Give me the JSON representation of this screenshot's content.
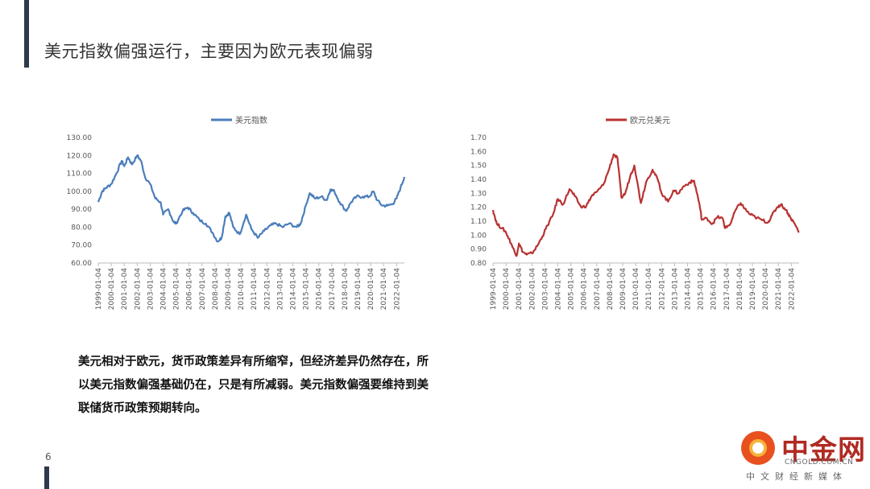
{
  "title": "美元指数偏强运行，主要因为欧元表现偏弱",
  "body_text": "美元相对于欧元，货币政策差异有所缩窄，但经济差异仍然存在，所以美元指数偏强基础仍在，只是有所减弱。美元指数偏强要维持到美联储货币政策预期转向。",
  "page_number": "6",
  "logo": {
    "name": "中金网",
    "domain": "CNGOLD.COM.CN",
    "tagline": "中文财经新媒体"
  },
  "chart_data": [
    {
      "type": "line",
      "legend": "美元指数",
      "color": "#4a7ebb",
      "y_ticks": [
        "60.00",
        "70.00",
        "80.00",
        "90.00",
        "100.00",
        "110.00",
        "120.00",
        "130.00"
      ],
      "ylim": [
        60,
        130
      ],
      "x_ticks": [
        "1999-01-04",
        "2000-01-04",
        "2001-01-04",
        "2002-01-04",
        "2003-01-04",
        "2004-01-04",
        "2005-01-04",
        "2006-01-04",
        "2007-01-04",
        "2008-01-04",
        "2009-01-04",
        "2010-01-04",
        "2011-01-04",
        "2012-01-04",
        "2013-01-04",
        "2014-01-04",
        "2015-01-04",
        "2016-01-04",
        "2017-01-04",
        "2018-01-04",
        "2019-01-04",
        "2020-01-04",
        "2021-01-04",
        "2022-01-04"
      ],
      "xlim": [
        1999.0,
        2022.6
      ],
      "points": [
        [
          1999.0,
          94
        ],
        [
          1999.3,
          100
        ],
        [
          1999.6,
          102
        ],
        [
          2000.0,
          104
        ],
        [
          2000.4,
          110
        ],
        [
          2000.8,
          117
        ],
        [
          2001.0,
          114
        ],
        [
          2001.3,
          119
        ],
        [
          2001.6,
          115
        ],
        [
          2002.0,
          120
        ],
        [
          2002.3,
          117
        ],
        [
          2002.6,
          108
        ],
        [
          2003.0,
          104
        ],
        [
          2003.4,
          96
        ],
        [
          2003.8,
          94
        ],
        [
          2004.0,
          87
        ],
        [
          2004.4,
          90
        ],
        [
          2004.8,
          83
        ],
        [
          2005.0,
          82
        ],
        [
          2005.5,
          89
        ],
        [
          2005.9,
          91
        ],
        [
          2006.3,
          88
        ],
        [
          2006.8,
          84
        ],
        [
          2007.3,
          82
        ],
        [
          2007.8,
          77
        ],
        [
          2008.2,
          72
        ],
        [
          2008.5,
          74
        ],
        [
          2008.8,
          86
        ],
        [
          2009.1,
          88
        ],
        [
          2009.4,
          80
        ],
        [
          2009.9,
          76
        ],
        [
          2010.4,
          87
        ],
        [
          2010.8,
          79
        ],
        [
          2011.3,
          74
        ],
        [
          2011.8,
          78
        ],
        [
          2012.3,
          81
        ],
        [
          2012.7,
          82
        ],
        [
          2013.2,
          80
        ],
        [
          2013.7,
          82
        ],
        [
          2014.3,
          80
        ],
        [
          2014.6,
          82
        ],
        [
          2015.0,
          92
        ],
        [
          2015.3,
          99
        ],
        [
          2015.7,
          96
        ],
        [
          2016.2,
          97
        ],
        [
          2016.6,
          95
        ],
        [
          2016.9,
          101
        ],
        [
          2017.2,
          100
        ],
        [
          2017.6,
          94
        ],
        [
          2018.1,
          89
        ],
        [
          2018.5,
          94
        ],
        [
          2018.9,
          97
        ],
        [
          2019.4,
          97
        ],
        [
          2019.9,
          97
        ],
        [
          2020.2,
          100
        ],
        [
          2020.5,
          95
        ],
        [
          2020.9,
          92
        ],
        [
          2021.3,
          92
        ],
        [
          2021.7,
          93
        ],
        [
          2022.0,
          96
        ],
        [
          2022.3,
          102
        ],
        [
          2022.6,
          108
        ]
      ]
    },
    {
      "type": "line",
      "legend": "欧元兑美元",
      "color": "#b83232",
      "y_ticks": [
        "0.80",
        "0.90",
        "1.00",
        "1.10",
        "1.20",
        "1.30",
        "1.40",
        "1.50",
        "1.60",
        "1.70"
      ],
      "ylim": [
        0.8,
        1.7
      ],
      "x_ticks": [
        "1999-01-04",
        "2000-01-04",
        "2001-01-04",
        "2002-01-04",
        "2003-01-04",
        "2004-01-04",
        "2005-01-04",
        "2006-01-04",
        "2007-01-04",
        "2008-01-04",
        "2009-01-04",
        "2010-01-04",
        "2011-01-04",
        "2012-01-04",
        "2013-01-04",
        "2014-01-04",
        "2015-01-04",
        "2016-01-04",
        "2017-01-04",
        "2018-01-04",
        "2019-01-04",
        "2020-01-04",
        "2021-01-04",
        "2022-01-04"
      ],
      "xlim": [
        1999.0,
        2022.6
      ],
      "points": [
        [
          1999.0,
          1.18
        ],
        [
          1999.3,
          1.08
        ],
        [
          1999.7,
          1.05
        ],
        [
          2000.0,
          1.02
        ],
        [
          2000.4,
          0.94
        ],
        [
          2000.8,
          0.85
        ],
        [
          2001.0,
          0.94
        ],
        [
          2001.3,
          0.88
        ],
        [
          2001.6,
          0.86
        ],
        [
          2002.0,
          0.87
        ],
        [
          2002.4,
          0.92
        ],
        [
          2002.8,
          0.99
        ],
        [
          2003.2,
          1.07
        ],
        [
          2003.6,
          1.14
        ],
        [
          2004.0,
          1.26
        ],
        [
          2004.4,
          1.22
        ],
        [
          2004.9,
          1.33
        ],
        [
          2005.3,
          1.28
        ],
        [
          2005.8,
          1.2
        ],
        [
          2006.2,
          1.21
        ],
        [
          2006.6,
          1.28
        ],
        [
          2007.0,
          1.31
        ],
        [
          2007.5,
          1.36
        ],
        [
          2007.9,
          1.46
        ],
        [
          2008.3,
          1.58
        ],
        [
          2008.6,
          1.55
        ],
        [
          2008.9,
          1.27
        ],
        [
          2009.2,
          1.3
        ],
        [
          2009.6,
          1.43
        ],
        [
          2009.9,
          1.5
        ],
        [
          2010.4,
          1.23
        ],
        [
          2010.8,
          1.38
        ],
        [
          2011.3,
          1.47
        ],
        [
          2011.7,
          1.4
        ],
        [
          2012.0,
          1.3
        ],
        [
          2012.5,
          1.24
        ],
        [
          2012.9,
          1.32
        ],
        [
          2013.3,
          1.3
        ],
        [
          2013.7,
          1.35
        ],
        [
          2014.2,
          1.38
        ],
        [
          2014.5,
          1.39
        ],
        [
          2014.9,
          1.23
        ],
        [
          2015.1,
          1.11
        ],
        [
          2015.5,
          1.12
        ],
        [
          2015.9,
          1.08
        ],
        [
          2016.3,
          1.13
        ],
        [
          2016.7,
          1.12
        ],
        [
          2016.9,
          1.05
        ],
        [
          2017.3,
          1.08
        ],
        [
          2017.7,
          1.18
        ],
        [
          2018.1,
          1.23
        ],
        [
          2018.4,
          1.19
        ],
        [
          2018.8,
          1.15
        ],
        [
          2019.2,
          1.13
        ],
        [
          2019.7,
          1.11
        ],
        [
          2020.2,
          1.09
        ],
        [
          2020.5,
          1.14
        ],
        [
          2020.9,
          1.2
        ],
        [
          2021.2,
          1.22
        ],
        [
          2021.6,
          1.18
        ],
        [
          2021.9,
          1.13
        ],
        [
          2022.2,
          1.09
        ],
        [
          2022.6,
          1.02
        ]
      ]
    }
  ]
}
